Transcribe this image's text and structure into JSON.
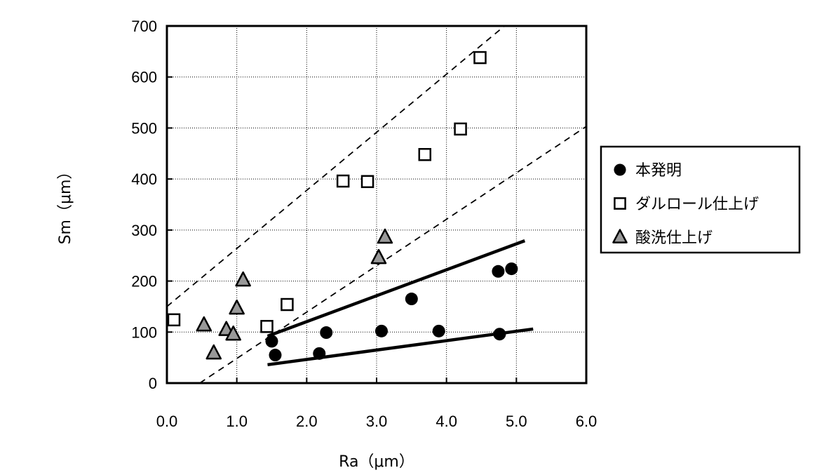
{
  "chart_data": {
    "type": "scatter",
    "title": "",
    "xlabel": "Ra（μm）",
    "ylabel": "Sm（μm）",
    "xlim": [
      0,
      6
    ],
    "ylim": [
      0,
      700
    ],
    "xticks": [
      "0.0",
      "1.0",
      "2.0",
      "3.0",
      "4.0",
      "5.0",
      "6.0"
    ],
    "yticks": [
      "0",
      "100",
      "200",
      "300",
      "400",
      "500",
      "600",
      "700"
    ],
    "grid": true,
    "legend_position": "right",
    "series": [
      {
        "name": "本発明",
        "marker": "circle",
        "color": "#000000",
        "points": [
          [
            1.5,
            82
          ],
          [
            1.55,
            55
          ],
          [
            2.18,
            58
          ],
          [
            2.28,
            99
          ],
          [
            3.07,
            102
          ],
          [
            3.5,
            165
          ],
          [
            3.89,
            102
          ],
          [
            4.74,
            219
          ],
          [
            4.93,
            224
          ],
          [
            4.76,
            96
          ]
        ]
      },
      {
        "name": "ダルロール仕上げ",
        "marker": "square",
        "color": "#000000",
        "points": [
          [
            0.1,
            124
          ],
          [
            1.43,
            111
          ],
          [
            1.72,
            154
          ],
          [
            2.52,
            396
          ],
          [
            2.87,
            395
          ],
          [
            3.69,
            448
          ],
          [
            4.2,
            498
          ],
          [
            4.48,
            638
          ]
        ]
      },
      {
        "name": "酸洗仕上げ",
        "marker": "triangle",
        "color": "#999999",
        "points": [
          [
            0.53,
            114
          ],
          [
            0.67,
            59
          ],
          [
            0.85,
            105
          ],
          [
            0.95,
            96
          ],
          [
            1.0,
            147
          ],
          [
            1.09,
            202
          ],
          [
            3.03,
            246
          ],
          [
            3.12,
            286
          ]
        ]
      }
    ],
    "lines": [
      {
        "name": "solid-upper",
        "style": "solid",
        "from": [
          1.44,
          92
        ],
        "to": [
          5.12,
          279
        ]
      },
      {
        "name": "solid-lower",
        "style": "solid",
        "from": [
          1.44,
          36
        ],
        "to": [
          5.24,
          106
        ]
      },
      {
        "name": "dashed-upper",
        "style": "dashed",
        "from": [
          0,
          150
        ],
        "to": [
          4.83,
          700
        ]
      },
      {
        "name": "dashed-lower",
        "style": "dashed",
        "from": [
          0.47,
          0
        ],
        "to": [
          6.0,
          503
        ]
      }
    ]
  }
}
